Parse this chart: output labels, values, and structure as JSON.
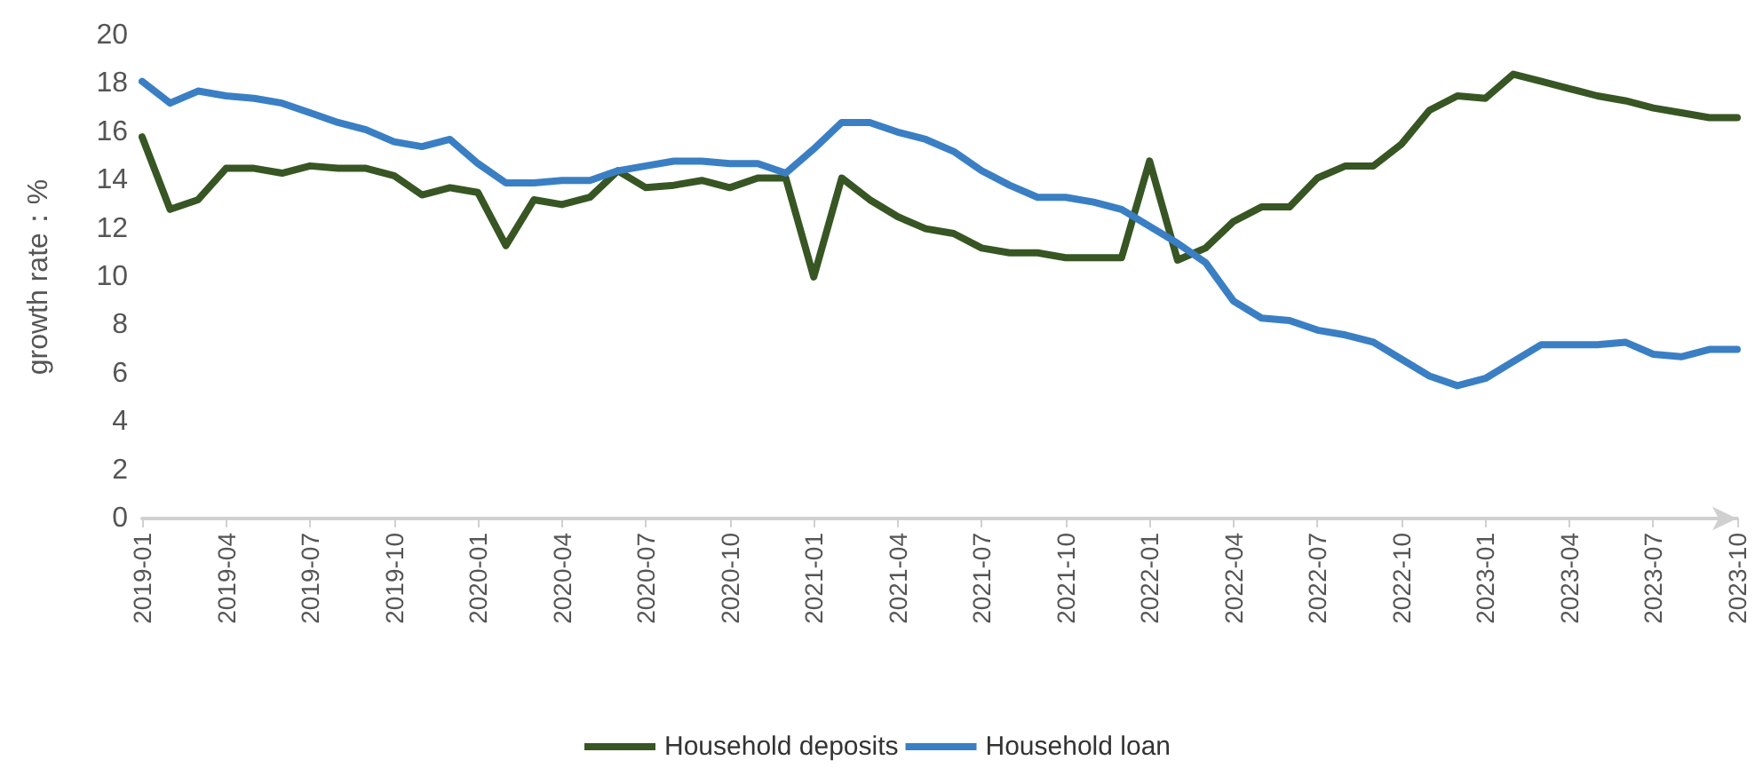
{
  "chart_data": {
    "type": "line",
    "ylabel": "growth rate：%",
    "categories": [
      "2019-01",
      null,
      null,
      "2019-04",
      null,
      null,
      "2019-07",
      null,
      null,
      "2019-10",
      null,
      null,
      "2020-01",
      null,
      null,
      "2020-04",
      null,
      null,
      "2020-07",
      null,
      null,
      "2020-10",
      null,
      null,
      "2021-01",
      null,
      null,
      "2021-04",
      null,
      null,
      "2021-07",
      null,
      null,
      "2021-10",
      null,
      null,
      "2022-01",
      null,
      null,
      "2022-04",
      null,
      null,
      "2022-07",
      null,
      null,
      "2022-10",
      null,
      null,
      "2023-01",
      null,
      null,
      "2023-04",
      null,
      null,
      "2023-07",
      null,
      null,
      "2023-10"
    ],
    "series": [
      {
        "name": "Household deposits",
        "color": "#375623",
        "values": [
          15.8,
          12.8,
          13.2,
          14.5,
          14.5,
          14.3,
          14.6,
          14.5,
          14.5,
          14.2,
          13.4,
          13.7,
          13.5,
          11.3,
          13.2,
          13.0,
          13.3,
          14.4,
          13.7,
          13.8,
          14.0,
          13.7,
          14.1,
          14.1,
          10.0,
          14.1,
          13.2,
          12.5,
          12.0,
          11.8,
          11.2,
          11.0,
          11.0,
          10.8,
          10.8,
          10.8,
          14.8,
          10.7,
          11.2,
          12.3,
          12.9,
          12.9,
          14.1,
          14.6,
          14.6,
          15.5,
          16.9,
          17.5,
          17.4,
          18.4,
          18.1,
          17.8,
          17.5,
          17.3,
          17.0,
          16.8,
          16.6,
          16.6
        ]
      },
      {
        "name": "Household loan",
        "color": "#3a7fc4",
        "values": [
          18.1,
          17.2,
          17.7,
          17.5,
          17.4,
          17.2,
          16.8,
          16.4,
          16.1,
          15.6,
          15.4,
          15.7,
          14.7,
          13.9,
          13.9,
          14.0,
          14.0,
          14.4,
          14.6,
          14.8,
          14.8,
          14.7,
          14.7,
          14.3,
          15.3,
          16.4,
          16.4,
          16.0,
          15.7,
          15.2,
          14.4,
          13.8,
          13.3,
          13.3,
          13.1,
          12.8,
          12.1,
          11.4,
          10.6,
          9.0,
          8.3,
          8.2,
          7.8,
          7.6,
          7.3,
          6.6,
          5.9,
          5.5,
          5.8,
          6.5,
          7.2,
          7.2,
          7.2,
          7.3,
          6.8,
          6.7,
          7.0,
          7.0
        ]
      }
    ],
    "ylim": [
      0,
      20
    ],
    "yticks": [
      0,
      2,
      4,
      6,
      8,
      10,
      12,
      14,
      16,
      18,
      20
    ],
    "grid": false,
    "legend": "bottom",
    "marker": "none",
    "line_style": "solid"
  }
}
